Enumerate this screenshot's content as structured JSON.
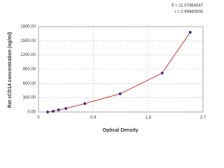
{
  "chart_data": {
    "type": "scatter",
    "x_label": "Optical Density",
    "y_label": "Rat sCD14 concentration (ng/ml)",
    "annotations": [
      "S = 11.07454047",
      "r = 0.99980000"
    ],
    "x": [
      0.15,
      0.24,
      0.33,
      0.45,
      0.76,
      1.34,
      2.03,
      2.49
    ],
    "values": [
      0,
      15,
      44,
      74,
      177,
      384,
      820,
      1680
    ],
    "color": "#3a2a8a",
    "line_color": "#d02020",
    "xlim": [
      0,
      2.7
    ],
    "xticks": [
      0,
      0.9,
      1.8,
      2.7
    ],
    "ylim": [
      0,
      1800
    ],
    "yticks": [
      {
        "value": 0,
        "label": "0.00"
      },
      {
        "value": 300,
        "label": "300.00"
      },
      {
        "value": 600,
        "label": "600.00"
      },
      {
        "value": 900,
        "label": "900.00"
      },
      {
        "value": 1200,
        "label": "1200.00"
      },
      {
        "value": 1500,
        "label": "1500.00"
      },
      {
        "value": 1800,
        "label": "1800.00"
      }
    ],
    "grid": true
  }
}
